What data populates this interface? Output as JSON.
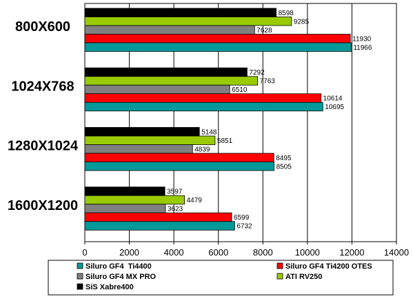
{
  "chart_data": {
    "type": "bar",
    "orientation": "horizontal",
    "categories": [
      "800X600",
      "1024X768",
      "1280X1024",
      "1600X1200"
    ],
    "series": [
      {
        "name": "SiS Xabre400",
        "color": "#000000",
        "values": [
          8598,
          7292,
          5148,
          3597
        ]
      },
      {
        "name": "ATI RV250",
        "color": "#99cc00",
        "values": [
          9285,
          7763,
          5851,
          4479
        ]
      },
      {
        "name": "Siluro GF4 MX PRO",
        "color": "#808080",
        "values": [
          7628,
          6510,
          4839,
          3623
        ]
      },
      {
        "name": "Siluro GF4 Ti4200 OTES",
        "color": "#ff0000",
        "values": [
          11930,
          10614,
          8495,
          6599
        ]
      },
      {
        "name": "Siluro GF4  Ti4400",
        "color": "#009999",
        "values": [
          11966,
          10695,
          8505,
          6732
        ]
      }
    ],
    "x_ticks": [
      "0",
      "2000",
      "4000",
      "6000",
      "8000",
      "10000",
      "12000",
      "14000"
    ],
    "xlim": [
      0,
      14000
    ],
    "grid": "vertical",
    "legend_position": "bottom",
    "legend_order": [
      "Siluro GF4  Ti4400",
      "Siluro GF4 Ti4200 OTES",
      "Siluro GF4 MX PRO",
      "ATI RV250",
      "SiS Xabre400"
    ],
    "title": "",
    "xlabel": "",
    "ylabel": ""
  }
}
